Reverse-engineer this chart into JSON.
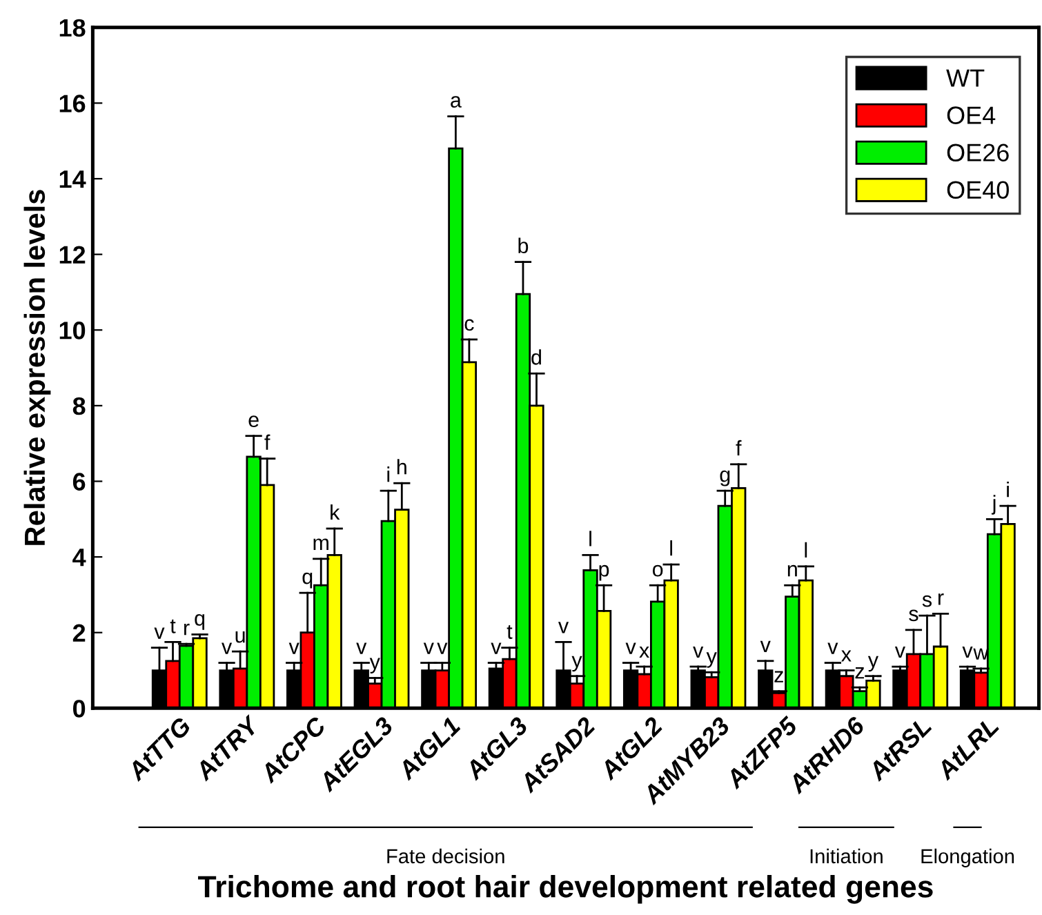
{
  "chart_data": {
    "type": "bar",
    "xlabel": "Trichome and root hair development related genes",
    "ylabel": "Relative expression levels",
    "categories": [
      "AtTTG",
      "AtTRY",
      "AtCPC",
      "AtEGL3",
      "AtGL1",
      "AtGL3",
      "AtSAD2",
      "AtGL2",
      "AtMYB23",
      "AtZFP5",
      "AtRHD6",
      "AtRSL",
      "AtLRL"
    ],
    "series": [
      {
        "name": "WT",
        "color": "#000000",
        "values": [
          1.0,
          1.0,
          1.0,
          1.0,
          1.0,
          1.05,
          1.0,
          1.0,
          1.0,
          1.0,
          1.0,
          1.0,
          1.0
        ],
        "errors": [
          [
            1.0,
            1.6
          ],
          [
            1.0,
            1.2
          ],
          [
            1.0,
            1.2
          ],
          [
            1.0,
            1.2
          ],
          [
            1.0,
            1.2
          ],
          [
            1.05,
            1.2
          ],
          [
            1.0,
            1.75
          ],
          [
            1.0,
            1.2
          ],
          [
            1.0,
            1.1
          ],
          [
            1.0,
            1.25
          ],
          [
            1.0,
            1.2
          ],
          [
            1.0,
            1.1
          ],
          [
            1.0,
            1.1
          ]
        ],
        "value_labels": [
          "v",
          "v",
          "v",
          "v",
          "v",
          "v",
          "v",
          "v",
          "v",
          "v",
          "v",
          "v",
          "v"
        ]
      },
      {
        "name": "OE4",
        "color": "#ff0000",
        "values": [
          1.25,
          1.05,
          2.0,
          0.65,
          1.0,
          1.3,
          0.65,
          0.9,
          0.82,
          0.4,
          0.85,
          1.43,
          0.94
        ],
        "errors": [
          [
            1.25,
            1.75
          ],
          [
            1.05,
            1.5
          ],
          [
            2.0,
            3.05
          ],
          [
            0.65,
            0.8
          ],
          [
            1.0,
            1.2
          ],
          [
            1.3,
            1.6
          ],
          [
            0.65,
            0.85
          ],
          [
            0.9,
            1.1
          ],
          [
            0.82,
            0.95
          ],
          [
            0.4,
            0.45
          ],
          [
            0.85,
            1.0
          ],
          [
            1.43,
            2.07
          ],
          [
            0.94,
            1.05
          ]
        ],
        "value_labels": [
          "t",
          "u",
          "q",
          "y",
          "v",
          "t",
          "y",
          "x",
          "y",
          "z",
          "x",
          "s",
          "w"
        ]
      },
      {
        "name": "OE26",
        "color": "#00ee00",
        "values": [
          1.65,
          6.65,
          3.25,
          4.95,
          14.8,
          10.95,
          3.65,
          2.82,
          5.35,
          2.95,
          0.45,
          1.43,
          4.6
        ],
        "errors": [
          [
            1.65,
            1.7
          ],
          [
            6.65,
            7.2
          ],
          [
            3.25,
            3.95
          ],
          [
            4.95,
            5.75
          ],
          [
            14.8,
            15.65
          ],
          [
            10.95,
            11.8
          ],
          [
            3.65,
            4.05
          ],
          [
            2.82,
            3.25
          ],
          [
            5.35,
            5.75
          ],
          [
            2.95,
            3.25
          ],
          [
            0.45,
            0.55
          ],
          [
            1.43,
            2.45
          ],
          [
            4.6,
            5.0
          ]
        ],
        "value_labels": [
          "r",
          "e",
          "m",
          "i",
          "a",
          "b",
          "l",
          "o",
          "g",
          "n",
          "z",
          "s",
          "j"
        ]
      },
      {
        "name": "OE40",
        "color": "#ffff00",
        "values": [
          1.85,
          5.9,
          4.05,
          5.25,
          9.15,
          8.0,
          2.57,
          3.38,
          5.82,
          3.38,
          0.73,
          1.63,
          4.87
        ],
        "errors": [
          [
            1.85,
            1.95
          ],
          [
            5.9,
            6.6
          ],
          [
            4.05,
            4.75
          ],
          [
            5.25,
            5.95
          ],
          [
            9.15,
            9.75
          ],
          [
            8.0,
            8.85
          ],
          [
            2.57,
            3.25
          ],
          [
            3.38,
            3.8
          ],
          [
            5.82,
            6.45
          ],
          [
            3.38,
            3.75
          ],
          [
            0.73,
            0.85
          ],
          [
            1.63,
            2.5
          ],
          [
            4.87,
            5.35
          ]
        ],
        "value_labels": [
          "q",
          "f",
          "k",
          "h",
          "c",
          "d",
          "p",
          "l",
          "f",
          "l",
          "y",
          "r",
          "i"
        ]
      }
    ],
    "annotations": [
      "Fate decision",
      "Initiation",
      "Elongation"
    ],
    "ylim": [
      0,
      18
    ],
    "yticks": [
      0,
      2,
      4,
      6,
      8,
      10,
      12,
      14,
      16,
      18
    ],
    "grid": false,
    "legend": "top right"
  }
}
